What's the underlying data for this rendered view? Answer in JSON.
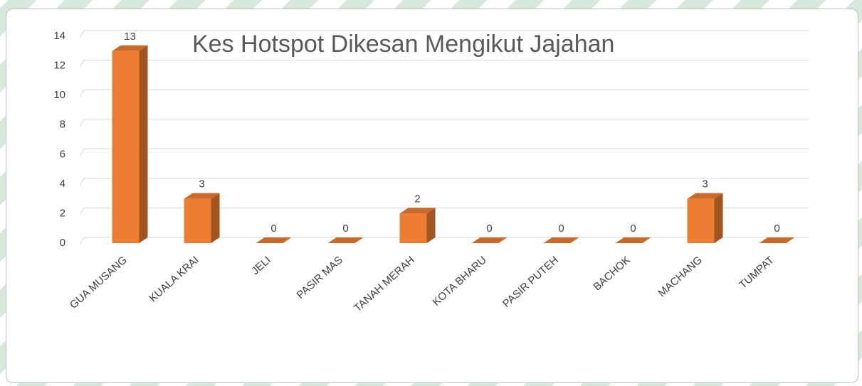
{
  "chart_data": {
    "type": "bar",
    "title": "Kes Hotspot Dikesan Mengikut Jajahan",
    "categories": [
      "GUA MUSANG",
      "KUALA KRAI",
      "JELI",
      "PASIR MAS",
      "TANAH MERAH",
      "KOTA BHARU",
      "PASIR PUTEH",
      "BACHOK",
      "MACHANG",
      "TUMPAT"
    ],
    "values": [
      13,
      3,
      0,
      0,
      2,
      0,
      0,
      0,
      3,
      0
    ],
    "color": "#ed7d31",
    "ylim": [
      0,
      14
    ],
    "yticks": [
      0,
      2,
      4,
      6,
      8,
      10,
      12,
      14
    ],
    "grid": true
  }
}
